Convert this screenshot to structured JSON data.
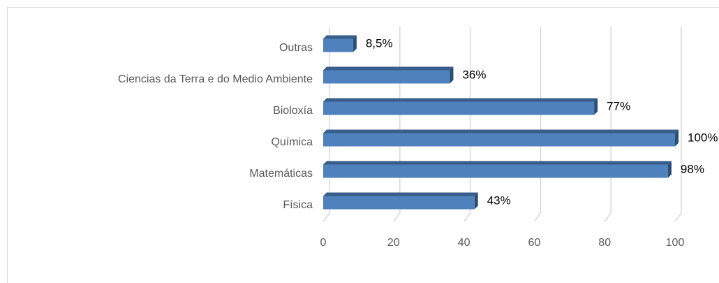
{
  "chart_data": {
    "type": "bar",
    "orientation": "horizontal",
    "categories": [
      "Física",
      "Matemáticas",
      "Química",
      "Bioloxía",
      "Ciencias da Terra e do Medio Ambiente",
      "Outras"
    ],
    "values": [
      43,
      98,
      100,
      77,
      36,
      8.5
    ],
    "value_labels": [
      "43%",
      "98%",
      "100%",
      "77%",
      "36%",
      "8,5%"
    ],
    "color": "#4f81bd",
    "xlim": [
      0,
      100
    ],
    "xticks": [
      0,
      20,
      40,
      60,
      80,
      100
    ],
    "grid": true
  }
}
